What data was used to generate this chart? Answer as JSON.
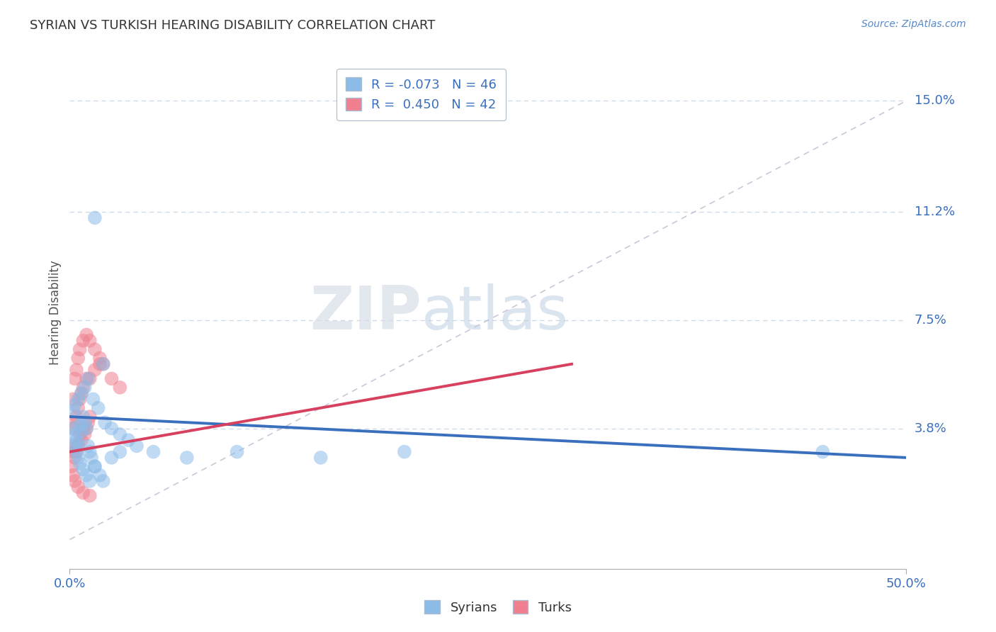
{
  "title": "SYRIAN VS TURKISH HEARING DISABILITY CORRELATION CHART",
  "source_text": "Source: ZipAtlas.com",
  "ylabel": "Hearing Disability",
  "xlim": [
    0.0,
    0.5
  ],
  "ylim": [
    -0.01,
    0.165
  ],
  "yticks": [
    0.038,
    0.075,
    0.112,
    0.15
  ],
  "ytick_labels": [
    "3.8%",
    "7.5%",
    "11.2%",
    "15.0%"
  ],
  "xticks": [
    0.0,
    0.5
  ],
  "xtick_labels": [
    "0.0%",
    "50.0%"
  ],
  "syrian_color": "#8bbce8",
  "turkish_color": "#f08090",
  "syrian_line_color": "#3a6fbd",
  "turkish_line_color": "#d84060",
  "legend_r_syrian": "-0.073",
  "legend_n_syrian": "46",
  "legend_r_turkish": "0.450",
  "legend_n_turkish": "42",
  "watermark_zip": "ZIP",
  "watermark_atlas": "atlas",
  "background_color": "#ffffff",
  "grid_color": "#c8d8e8",
  "ref_line_color": "#c0b8d0",
  "syrian_x": [
    0.002,
    0.003,
    0.004,
    0.005,
    0.006,
    0.007,
    0.008,
    0.009,
    0.01,
    0.011,
    0.012,
    0.013,
    0.015,
    0.003,
    0.004,
    0.005,
    0.006,
    0.008,
    0.01,
    0.012,
    0.015,
    0.018,
    0.02,
    0.025,
    0.03,
    0.002,
    0.003,
    0.005,
    0.007,
    0.009,
    0.011,
    0.014,
    0.017,
    0.021,
    0.025,
    0.03,
    0.035,
    0.04,
    0.05,
    0.07,
    0.1,
    0.15,
    0.2,
    0.02,
    0.015,
    0.45
  ],
  "syrian_y": [
    0.038,
    0.036,
    0.034,
    0.033,
    0.039,
    0.037,
    0.042,
    0.04,
    0.038,
    0.032,
    0.03,
    0.028,
    0.025,
    0.032,
    0.03,
    0.028,
    0.026,
    0.024,
    0.022,
    0.02,
    0.025,
    0.022,
    0.02,
    0.028,
    0.03,
    0.044,
    0.046,
    0.048,
    0.05,
    0.052,
    0.055,
    0.048,
    0.045,
    0.04,
    0.038,
    0.036,
    0.034,
    0.032,
    0.03,
    0.028,
    0.03,
    0.028,
    0.03,
    0.06,
    0.11,
    0.03
  ],
  "turkish_x": [
    0.001,
    0.002,
    0.003,
    0.004,
    0.005,
    0.006,
    0.007,
    0.008,
    0.009,
    0.01,
    0.011,
    0.012,
    0.002,
    0.003,
    0.004,
    0.005,
    0.006,
    0.007,
    0.008,
    0.01,
    0.012,
    0.015,
    0.018,
    0.002,
    0.003,
    0.004,
    0.005,
    0.006,
    0.008,
    0.01,
    0.012,
    0.015,
    0.018,
    0.02,
    0.025,
    0.03,
    0.001,
    0.002,
    0.003,
    0.005,
    0.008,
    0.012
  ],
  "turkish_y": [
    0.032,
    0.03,
    0.028,
    0.03,
    0.032,
    0.036,
    0.034,
    0.038,
    0.036,
    0.038,
    0.04,
    0.042,
    0.038,
    0.04,
    0.042,
    0.045,
    0.048,
    0.05,
    0.052,
    0.055,
    0.055,
    0.058,
    0.06,
    0.048,
    0.055,
    0.058,
    0.062,
    0.065,
    0.068,
    0.07,
    0.068,
    0.065,
    0.062,
    0.06,
    0.055,
    0.052,
    0.025,
    0.022,
    0.02,
    0.018,
    0.016,
    0.015
  ],
  "syrian_line_x": [
    0.0,
    0.5
  ],
  "syrian_line_y": [
    0.042,
    0.028
  ],
  "turkish_line_x": [
    0.0,
    0.3
  ],
  "turkish_line_y": [
    0.03,
    0.06
  ]
}
